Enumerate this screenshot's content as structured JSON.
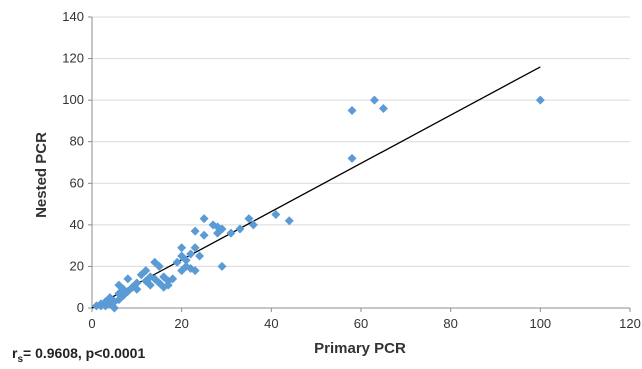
{
  "chart_data": {
    "type": "scatter",
    "title": "",
    "xlabel": "Primary PCR",
    "ylabel": "Nested PCR",
    "xlim": [
      0,
      120
    ],
    "ylim": [
      0,
      140
    ],
    "x_ticks": [
      "0",
      "20",
      "40",
      "60",
      "80",
      "100",
      "120"
    ],
    "y_ticks": [
      "0",
      "20",
      "40",
      "60",
      "80",
      "100",
      "120",
      "140"
    ],
    "grid": "horizontal",
    "legend": "none",
    "marker_color": "#5B9BD5",
    "trendline_color": "#000000",
    "trendline": {
      "x": [
        0,
        100
      ],
      "y": [
        0,
        116
      ]
    },
    "points": [
      {
        "x": 1,
        "y": 1
      },
      {
        "x": 2,
        "y": 1
      },
      {
        "x": 2,
        "y": 2
      },
      {
        "x": 3,
        "y": 1
      },
      {
        "x": 3,
        "y": 3
      },
      {
        "x": 4,
        "y": 2
      },
      {
        "x": 4,
        "y": 5
      },
      {
        "x": 5,
        "y": 0
      },
      {
        "x": 5,
        "y": 3
      },
      {
        "x": 6,
        "y": 4
      },
      {
        "x": 6,
        "y": 7
      },
      {
        "x": 6,
        "y": 11
      },
      {
        "x": 7,
        "y": 6
      },
      {
        "x": 7,
        "y": 9
      },
      {
        "x": 8,
        "y": 8
      },
      {
        "x": 8,
        "y": 14
      },
      {
        "x": 9,
        "y": 10
      },
      {
        "x": 10,
        "y": 9
      },
      {
        "x": 10,
        "y": 12
      },
      {
        "x": 11,
        "y": 16
      },
      {
        "x": 12,
        "y": 13
      },
      {
        "x": 12,
        "y": 18
      },
      {
        "x": 13,
        "y": 11
      },
      {
        "x": 13,
        "y": 15
      },
      {
        "x": 14,
        "y": 14
      },
      {
        "x": 14,
        "y": 22
      },
      {
        "x": 15,
        "y": 12
      },
      {
        "x": 15,
        "y": 20
      },
      {
        "x": 16,
        "y": 10
      },
      {
        "x": 16,
        "y": 15
      },
      {
        "x": 17,
        "y": 11
      },
      {
        "x": 17,
        "y": 13
      },
      {
        "x": 18,
        "y": 14
      },
      {
        "x": 19,
        "y": 22
      },
      {
        "x": 20,
        "y": 18
      },
      {
        "x": 20,
        "y": 25
      },
      {
        "x": 20,
        "y": 29
      },
      {
        "x": 21,
        "y": 20
      },
      {
        "x": 21,
        "y": 23
      },
      {
        "x": 22,
        "y": 19
      },
      {
        "x": 22,
        "y": 26
      },
      {
        "x": 23,
        "y": 18
      },
      {
        "x": 23,
        "y": 29
      },
      {
        "x": 23,
        "y": 37
      },
      {
        "x": 24,
        "y": 25
      },
      {
        "x": 25,
        "y": 35
      },
      {
        "x": 25,
        "y": 43
      },
      {
        "x": 27,
        "y": 40
      },
      {
        "x": 28,
        "y": 36
      },
      {
        "x": 28,
        "y": 39
      },
      {
        "x": 29,
        "y": 20
      },
      {
        "x": 29,
        "y": 38
      },
      {
        "x": 31,
        "y": 36
      },
      {
        "x": 33,
        "y": 38
      },
      {
        "x": 35,
        "y": 43
      },
      {
        "x": 36,
        "y": 40
      },
      {
        "x": 41,
        "y": 45
      },
      {
        "x": 44,
        "y": 42
      },
      {
        "x": 58,
        "y": 72
      },
      {
        "x": 58,
        "y": 95
      },
      {
        "x": 63,
        "y": 100
      },
      {
        "x": 65,
        "y": 96
      },
      {
        "x": 100,
        "y": 100
      }
    ]
  },
  "stat_note": {
    "r_symbol": "r",
    "r_subscript": "s",
    "text": "= 0.9608, p<0.0001"
  }
}
